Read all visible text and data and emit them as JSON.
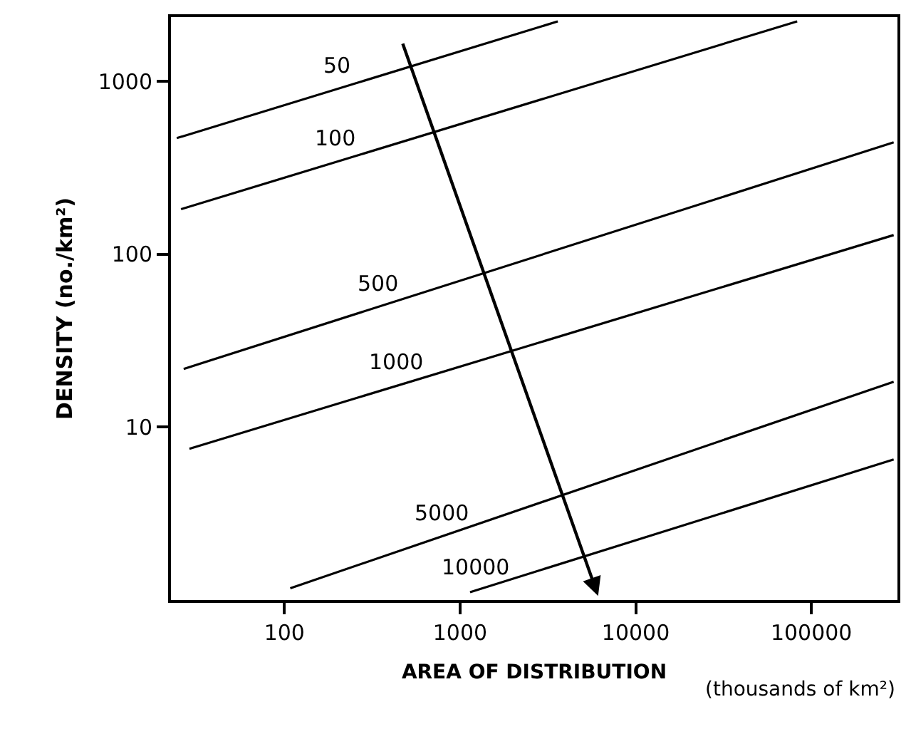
{
  "chart_data": {
    "type": "line",
    "xlabel": "AREA OF DISTRIBUTION",
    "ylabel": "DENSITY (no./km²)",
    "annotations": [
      "(thousands of km²)"
    ],
    "log": "xy",
    "xlim": [
      22.6,
      309000
    ],
    "ylim": [
      1,
      2350
    ],
    "xticks": [
      100,
      1000,
      10000,
      100000
    ],
    "yticks": [
      10,
      100,
      1000
    ],
    "legend": false,
    "marker": "none",
    "line_style": "solid",
    "series": [
      {
        "name": "50",
        "color": "#000000",
        "x": [
          24.4,
          3600
        ],
        "values": [
          469,
          2220
        ]
      },
      {
        "name": "100",
        "color": "#000000",
        "x": [
          25.8,
          83000
        ],
        "values": [
          182,
          2220
        ]
      },
      {
        "name": "500",
        "color": "#000000",
        "x": [
          26.7,
          294000
        ],
        "values": [
          21.7,
          443
        ]
      },
      {
        "name": "1000",
        "color": "#000000",
        "x": [
          28.8,
          294000
        ],
        "values": [
          7.5,
          129
        ]
      },
      {
        "name": "5000",
        "color": "#000000",
        "x": [
          108,
          294000
        ],
        "values": [
          1.17,
          18.3
        ]
      },
      {
        "name": "10000",
        "color": "#000000",
        "x": [
          1140,
          294000
        ],
        "values": [
          1.11,
          6.5
        ]
      }
    ]
  }
}
